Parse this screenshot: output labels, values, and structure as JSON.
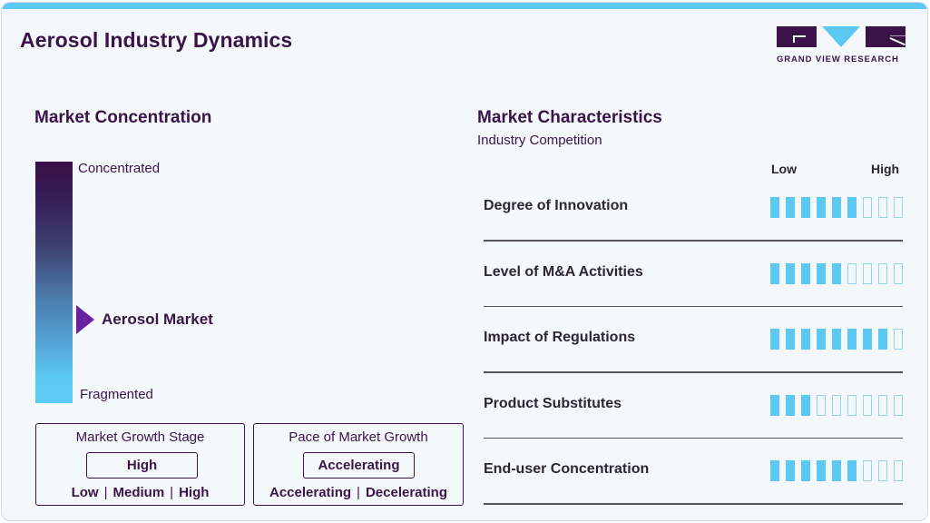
{
  "header": {
    "title": "Aerosol Industry Dynamics",
    "logo_text": "GRAND VIEW RESEARCH"
  },
  "colors": {
    "brand_dark": "#3a1449",
    "accent_cyan": "#5bc9f4",
    "marker_purple": "#6a1fa0",
    "background": "#f4f8fb"
  },
  "concentration": {
    "title": "Market Concentration",
    "top_label": "Concentrated",
    "bottom_label": "Fragmented",
    "marker_label": "Aerosol Market"
  },
  "growth_stage": {
    "title": "Market Growth Stage",
    "value": "High",
    "options": [
      "Low",
      "Medium",
      "High"
    ],
    "sep": "|"
  },
  "growth_pace": {
    "title": "Pace of Market Growth",
    "value": "Accelerating",
    "options": [
      "Accelerating",
      "Decelerating"
    ],
    "sep": "|"
  },
  "characteristics": {
    "title": "Market Characteristics",
    "subtitle": "Industry Competition",
    "scale_low": "Low",
    "scale_high": "High",
    "max": 9,
    "rows": [
      {
        "label": "Degree of Innovation",
        "value": 6
      },
      {
        "label": "Level of M&A Activities",
        "value": 5
      },
      {
        "label": "Impact of Regulations",
        "value": 8
      },
      {
        "label": "Product Substitutes",
        "value": 3
      },
      {
        "label": "End-user Concentration",
        "value": 6
      }
    ]
  }
}
